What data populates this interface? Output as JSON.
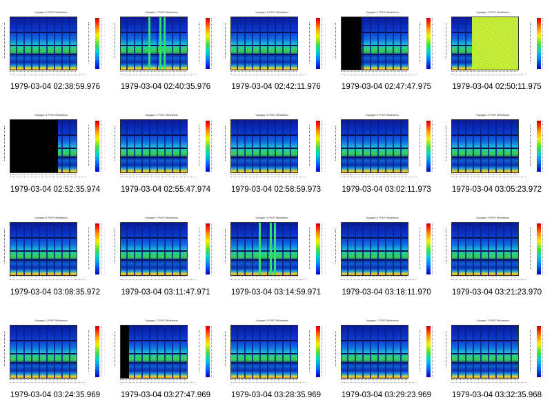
{
  "plot_title": "Voyager-1 PWS Wideband",
  "colors": {
    "background": "#ffffff",
    "caption": "#000000"
  },
  "thumbnails": [
    {
      "caption": "1979-03-04 02:38:59.976",
      "variant": "normal"
    },
    {
      "caption": "1979-03-04 02:40:35.976",
      "variant": "spikes"
    },
    {
      "caption": "1979-03-04 02:42:11.976",
      "variant": "normal"
    },
    {
      "caption": "1979-03-04 02:47:47.975",
      "variant": "left-black"
    },
    {
      "caption": "1979-03-04 02:50:11.975",
      "variant": "right-noise"
    },
    {
      "caption": "1979-03-04 02:52:35.974",
      "variant": "mostly-black"
    },
    {
      "caption": "1979-03-04 02:55:47.974",
      "variant": "normal"
    },
    {
      "caption": "1979-03-04 02:58:59.973",
      "variant": "normal"
    },
    {
      "caption": "1979-03-04 03:02:11.973",
      "variant": "normal"
    },
    {
      "caption": "1979-03-04 03:05:23.972",
      "variant": "normal"
    },
    {
      "caption": "1979-03-04 03:08:35.972",
      "variant": "normal"
    },
    {
      "caption": "1979-03-04 03:11:47.971",
      "variant": "normal"
    },
    {
      "caption": "1979-03-04 03:14:59.971",
      "variant": "spikes"
    },
    {
      "caption": "1979-03-04 03:18:11.970",
      "variant": "normal"
    },
    {
      "caption": "1979-03-04 03:21:23.970",
      "variant": "normal"
    },
    {
      "caption": "1979-03-04 03:24:35.969",
      "variant": "normal"
    },
    {
      "caption": "1979-03-04 03:27:47.969",
      "variant": "left-strip"
    },
    {
      "caption": "1979-03-04 03:28:35.969",
      "variant": "normal"
    },
    {
      "caption": "1979-03-04 03:29:23.969",
      "variant": "normal"
    },
    {
      "caption": "1979-03-04 03:32:35.968",
      "variant": "normal"
    }
  ]
}
